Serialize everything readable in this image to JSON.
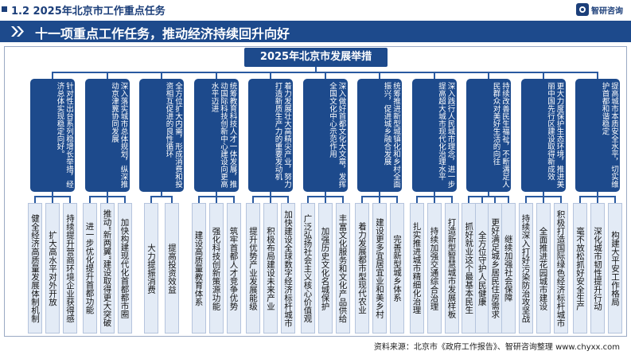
{
  "header": {
    "section_title": "1.2 2025年北京市工作重点任务",
    "logo_text": "智研咨询"
  },
  "banner": {
    "text": "十一项重点工作任务，推动经济持续回升向好"
  },
  "diagram": {
    "root": "2025年北京市发展举措",
    "tasks": [
      {
        "text": "针对性出台系列稳增长举措，经济总体实现稳定向好。",
        "subs": [
          "健全经济高质量发展体制机制",
          "扩大高水平对外开放",
          "持续提升营商环境企业获得感"
        ]
      },
      {
        "text": "深入落实城市总体规划，纵深推动京津冀协同发展",
        "subs": [
          "进一步优化提升首都功能",
          "推动“新两翼”建设取得更大突破",
          "加快构建现代化首都都市圈"
        ]
      },
      {
        "text": "全方位扩大内需，形成消费和投资相互促进的良性循环",
        "subs": [
          "大力提振消费",
          "提高投资效益"
        ]
      },
      {
        "text": "统筹教育科技人才一体发展，推动国际科技创新中心建设向更高水平迈进",
        "subs": [
          "建设高质量教育体系",
          "强化科技创新策源功能",
          "筑牢首都人才竞争优势"
        ]
      },
      {
        "text": "着力发展壮大高精尖产业，努力打造新质生产力的重要发动机",
        "subs": [
          "提升优势产业发展能级",
          "积极布局建设未来产业",
          "加快建设全球数字经济标杆城市"
        ]
      },
      {
        "text": "深入做好首都文化大文章，发挥全国文化中心示范作用",
        "subs": [
          "广泛弘扬社会主义核心价值观",
          "加强历史文化名城保护",
          "丰富文化服务和文化产品供给"
        ]
      },
      {
        "text": "统筹推进新型城镇化和乡村全面振兴，促进城乡融合发展",
        "subs": [
          "着力发展都市型现代农业",
          "建设更多宜居宜业和美乡村",
          "完善新型城乡体系"
        ]
      },
      {
        "text": "深入践行人民城市理念，进一步提高超大城市现代化治理水平",
        "subs": [
          "扎实推进城市精细化治理",
          "持续加强交通综合治理",
          "打造新型智慧城市发展样板"
        ]
      },
      {
        "text": "持续改善民生福祉，不断满足人民群众对美好生活的向往",
        "subs": [
          "抓好就业这个最基本民生",
          "全方位守护人民健康",
          "更好满足城乡居民住房需求",
          "继续加强社会保障"
        ]
      },
      {
        "text": "更大力度保护生态环境，推进美丽中国先行区建设取得新成效",
        "subs": [
          "持续深入打好污染防治攻坚战",
          "全面推进花园城市建设",
          "积极打造国际绿色经济标杆城市"
        ]
      },
      {
        "text": "提高城市本质安全水平，切实维护首都和谐稳定",
        "subs": [
          "毫不放松抓好安全生产",
          "深化城市韧性提升行动",
          "构建大平安工作格局"
        ]
      }
    ]
  },
  "footer": {
    "source": "资料来源：北京市《政府工作报告》、智研咨询整理 www.chyxx.com"
  },
  "colors": {
    "primary": "#1d4a8c",
    "sub_box_bg": "#e3ebf6",
    "sub_box_border": "#b5c4dd"
  }
}
